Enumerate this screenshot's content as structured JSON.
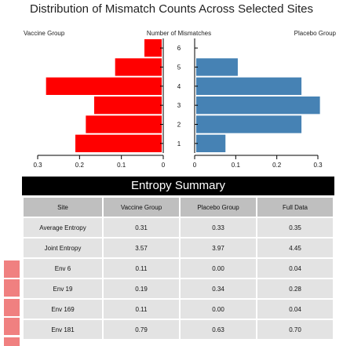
{
  "title": "Distribution of Mismatch Counts Across Selected Sites",
  "colors": {
    "vaccine": "#ff0000",
    "placebo": "#4682b4",
    "banner": "#000000",
    "header_cell": "#bfbfbf",
    "body_cell": "#e3e3e3",
    "swatch": "#f08080"
  },
  "chart_data": {
    "type": "bar",
    "orientation": "horizontal-back-to-back",
    "title": "Distribution of Mismatch Counts Across Selected Sites",
    "category_label": "Number of Mismatches",
    "categories": [
      "1",
      "2",
      "3",
      "4",
      "5",
      "6"
    ],
    "left_label": "Vaccine Group",
    "right_label": "Placebo Group",
    "series": [
      {
        "name": "Vaccine Group",
        "values": [
          0.21,
          0.185,
          0.165,
          0.28,
          0.115,
          0.045
        ]
      },
      {
        "name": "Placebo Group",
        "values": [
          0.075,
          0.26,
          0.305,
          0.26,
          0.105,
          0.0
        ]
      }
    ],
    "left_xlim": [
      0,
      0.3
    ],
    "right_xlim": [
      0,
      0.3
    ],
    "left_ticks": [
      "0.3",
      "0.2",
      "0.1",
      "0"
    ],
    "right_ticks": [
      "0",
      "0.1",
      "0.2",
      "0.3"
    ],
    "tick_values": [
      0.3,
      0.2,
      0.1,
      0
    ],
    "right_tick_values": [
      0,
      0.1,
      0.2,
      0.3
    ],
    "grid": false
  },
  "summary": {
    "banner": "Entropy Summary",
    "headers": [
      "Site",
      "Vaccine Group",
      "Placebo Group",
      "Full Data"
    ],
    "rows": [
      [
        "Average Entropy",
        "0.31",
        "0.33",
        "0.35"
      ],
      [
        "Joint Entropy",
        "3.57",
        "3.97",
        "4.45"
      ],
      [
        "Env 6",
        "0.11",
        "0.00",
        "0.04"
      ],
      [
        "Env 19",
        "0.19",
        "0.34",
        "0.28"
      ],
      [
        "Env 169",
        "0.11",
        "0.00",
        "0.04"
      ],
      [
        "Env 181",
        "0.79",
        "0.63",
        "0.70"
      ]
    ]
  }
}
